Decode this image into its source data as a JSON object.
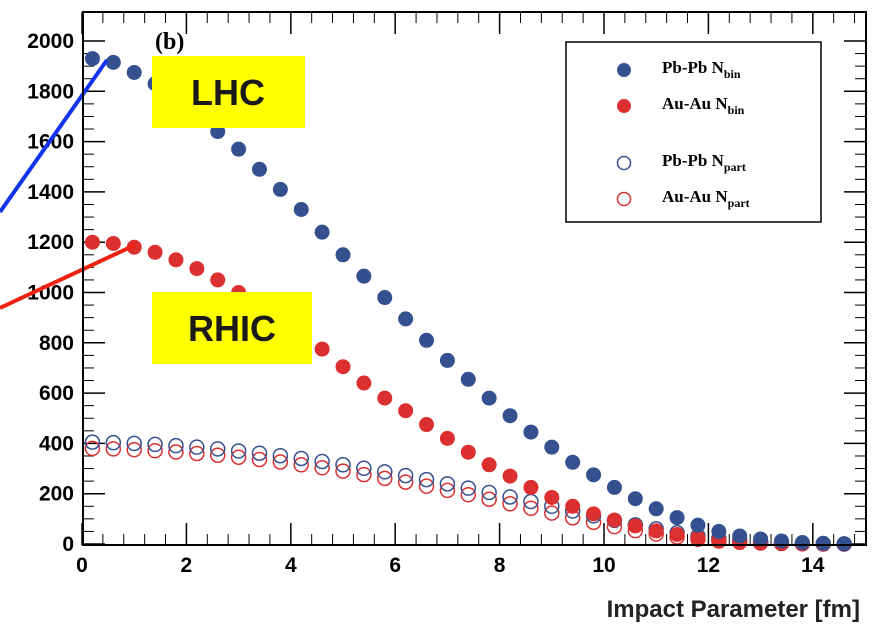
{
  "chart_data": {
    "type": "scatter",
    "panel_label": "(b)",
    "xlabel": "Impact Parameter [fm]",
    "ylabel": "",
    "xlim": [
      0,
      15
    ],
    "ylim": [
      0,
      2050
    ],
    "x_ticks": [
      0,
      2,
      4,
      6,
      8,
      10,
      12,
      14
    ],
    "y_ticks": [
      0,
      200,
      400,
      600,
      800,
      1000,
      1200,
      1400,
      1600,
      1800,
      2000
    ],
    "legend_position": "top-right",
    "legend": [
      {
        "main": "Pb-Pb N",
        "sub": "bin",
        "marker": "filled",
        "color": "#35508f"
      },
      {
        "main": "Au-Au N",
        "sub": "bin",
        "marker": "filled",
        "color": "#dc2f2f"
      },
      {
        "main": "Pb-Pb N",
        "sub": "part",
        "marker": "open",
        "color": "#35508f"
      },
      {
        "main": "Au-Au N",
        "sub": "part",
        "marker": "open",
        "color": "#dc2f2f"
      }
    ],
    "x": [
      0.2,
      0.6,
      1.0,
      1.4,
      1.8,
      2.2,
      2.6,
      3.0,
      3.4,
      3.8,
      4.2,
      4.6,
      5.0,
      5.4,
      5.8,
      6.2,
      6.6,
      7.0,
      7.4,
      7.8,
      8.2,
      8.6,
      9.0,
      9.4,
      9.8,
      10.2,
      10.6,
      11.0,
      11.4,
      11.8,
      12.2,
      12.6,
      13.0,
      13.4,
      13.8,
      14.2,
      14.6
    ],
    "series": [
      {
        "name": "Pb-Pb N_bin",
        "marker": "filled",
        "color": "#35508f",
        "values": [
          1930,
          1915,
          1875,
          1830,
          1770,
          1705,
          1640,
          1570,
          1490,
          1410,
          1330,
          1240,
          1150,
          1065,
          980,
          895,
          810,
          730,
          655,
          580,
          510,
          445,
          385,
          325,
          275,
          225,
          180,
          140,
          105,
          75,
          50,
          32,
          20,
          12,
          6,
          3,
          1
        ]
      },
      {
        "name": "Au-Au N_bin",
        "marker": "filled",
        "color": "#dc2f2f",
        "values": [
          1200,
          1195,
          1180,
          1160,
          1130,
          1095,
          1050,
          1000,
          950,
          895,
          840,
          775,
          705,
          640,
          580,
          530,
          475,
          420,
          365,
          315,
          270,
          225,
          185,
          150,
          120,
          95,
          72,
          52,
          38,
          25,
          16,
          10,
          6,
          3,
          2,
          1,
          0
        ]
      },
      {
        "name": "Pb-Pb N_part",
        "marker": "open",
        "color": "#35508f",
        "values": [
          405,
          403,
          400,
          396,
          391,
          385,
          378,
          370,
          361,
          351,
          340,
          328,
          315,
          301,
          287,
          272,
          256,
          239,
          222,
          205,
          187,
          169,
          150,
          131,
          112,
          94,
          76,
          60,
          45,
          32,
          22,
          14,
          8,
          4,
          2,
          1,
          0
        ]
      },
      {
        "name": "Au-Au N_part",
        "marker": "open",
        "color": "#dc2f2f",
        "values": [
          380,
          378,
          375,
          371,
          366,
          360,
          353,
          345,
          336,
          326,
          315,
          303,
          290,
          276,
          261,
          246,
          230,
          213,
          196,
          178,
          160,
          142,
          123,
          104,
          86,
          69,
          53,
          40,
          28,
          19,
          12,
          7,
          4,
          2,
          1,
          0,
          0
        ]
      }
    ],
    "annotations": [
      {
        "text": "LHC",
        "box_color": "#ffff00",
        "line_color": "#1133ee"
      },
      {
        "text": "RHIC",
        "box_color": "#ffff00",
        "line_color": "#ee2211"
      }
    ]
  }
}
